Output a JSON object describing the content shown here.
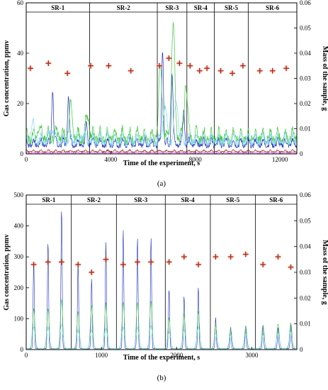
{
  "chart_data": [
    {
      "panel_label": "(a)",
      "type": "line",
      "xlabel": "Time of the experiment, s",
      "ylabel": "Gas concentration, ppmv",
      "y2label": "Mass of the sample, g",
      "xlim": [
        0,
        12800
      ],
      "ylim": [
        0,
        60
      ],
      "y2lim": [
        0,
        0.06
      ],
      "xticks": [
        0,
        4000,
        8000,
        12000
      ],
      "yticks": [
        0,
        20,
        40,
        60
      ],
      "y2ticks": [
        0,
        0.01,
        0.02,
        0.03,
        0.04,
        0.05,
        0.06
      ],
      "y2ticklabels": [
        "0",
        "0.01",
        "0.02",
        "0.03",
        "0.04",
        "0.05",
        "0.06"
      ],
      "segments": [
        {
          "label": "SR-1",
          "start": 0,
          "end": 3000
        },
        {
          "label": "SR-2",
          "start": 3000,
          "end": 6200
        },
        {
          "label": "SR-3",
          "start": 6200,
          "end": 7600
        },
        {
          "label": "SR-4",
          "start": 7600,
          "end": 8900
        },
        {
          "label": "SR-5",
          "start": 8900,
          "end": 10500
        },
        {
          "label": "SR-6",
          "start": 10500,
          "end": 12800
        }
      ],
      "mass_points": {
        "x": [
          200,
          1050,
          1950,
          3050,
          3900,
          4950,
          6300,
          6750,
          7250,
          7750,
          8200,
          8550,
          9200,
          9750,
          10250,
          11050,
          11650,
          12300
        ],
        "y": [
          0.034,
          0.036,
          0.032,
          0.035,
          0.035,
          0.033,
          0.035,
          0.038,
          0.036,
          0.035,
          0.033,
          0.034,
          0.033,
          0.032,
          0.035,
          0.033,
          0.033,
          0.034
        ]
      },
      "series": [
        {
          "color": "#1c2fc4",
          "baseline": 6,
          "peaks": [
            [
              1250,
              28
            ],
            [
              2000,
              25
            ],
            [
              2850,
              14
            ],
            [
              6450,
              44
            ],
            [
              6900,
              34
            ],
            [
              7450,
              20
            ]
          ],
          "width": 60
        },
        {
          "color": "#3ec93e",
          "baseline": 10,
          "peaks": [
            [
              600,
              14
            ],
            [
              1500,
              12
            ],
            [
              2100,
              21
            ],
            [
              2900,
              18
            ],
            [
              6350,
              37
            ],
            [
              6950,
              54
            ],
            [
              7550,
              32
            ]
          ],
          "width": 110
        },
        {
          "color": "#7fd6ee",
          "baseline": 8,
          "peaks": [
            [
              300,
              14
            ],
            [
              1200,
              13
            ],
            [
              2600,
              10
            ],
            [
              6550,
              22
            ],
            [
              7100,
              24
            ]
          ],
          "width": 120
        },
        {
          "color": "#8b1a1a",
          "baseline": 1.5,
          "peaks": [],
          "width": 60
        },
        {
          "color": "#e040e0",
          "baseline": 0.6,
          "peaks": [],
          "width": 60
        }
      ],
      "regular_peak_spacing": 350
    },
    {
      "panel_label": "(b)",
      "type": "line",
      "xlabel": "Time of the experiment, s",
      "ylabel": "Gas concentration, ppmv",
      "y2label": "Mass of the sample, g",
      "xlim": [
        0,
        3600
      ],
      "ylim": [
        0,
        500
      ],
      "y2lim": [
        0,
        0.06
      ],
      "xticks": [
        0,
        1000,
        2000,
        3000
      ],
      "yticks": [
        0,
        100,
        200,
        300,
        400,
        500
      ],
      "y2ticks": [
        0,
        0.01,
        0.02,
        0.03,
        0.04,
        0.05,
        0.06
      ],
      "y2ticklabels": [
        "0",
        "0.01",
        "0.02",
        "0.03",
        "0.04",
        "0.05",
        "0.06"
      ],
      "segments": [
        {
          "label": "SR-1",
          "start": 0,
          "end": 600
        },
        {
          "label": "SR-2",
          "start": 600,
          "end": 1200
        },
        {
          "label": "SR-3",
          "start": 1200,
          "end": 1850
        },
        {
          "label": "SR-4",
          "start": 1850,
          "end": 2450
        },
        {
          "label": "SR-5",
          "start": 2450,
          "end": 3050
        },
        {
          "label": "SR-6",
          "start": 3050,
          "end": 3600
        }
      ],
      "mass_points": {
        "x": [
          100,
          290,
          470,
          690,
          870,
          1060,
          1290,
          1480,
          1660,
          1900,
          2100,
          2290,
          2520,
          2720,
          2920,
          3150,
          3350,
          3520
        ],
        "y": [
          0.033,
          0.034,
          0.034,
          0.033,
          0.03,
          0.035,
          0.033,
          0.034,
          0.034,
          0.034,
          0.036,
          0.033,
          0.036,
          0.036,
          0.037,
          0.033,
          0.036,
          0.032
        ]
      },
      "peak_times": [
        100,
        290,
        470,
        690,
        870,
        1060,
        1290,
        1480,
        1660,
        1900,
        2100,
        2290,
        2520,
        2720,
        2920,
        3150,
        3350,
        3520
      ],
      "series": [
        {
          "color": "#1c2fc4",
          "heights": [
            285,
            350,
            458,
            280,
            228,
            345,
            385,
            360,
            360,
            195,
            172,
            200,
            100,
            70,
            75,
            80,
            70,
            85
          ],
          "width": 11
        },
        {
          "color": "#3ec93e",
          "heights": [
            130,
            130,
            160,
            120,
            140,
            150,
            150,
            150,
            155,
            100,
            110,
            120,
            75,
            65,
            70,
            75,
            80,
            80
          ],
          "width": 22
        },
        {
          "color": "#7fd6ee",
          "heights": [
            70,
            70,
            80,
            60,
            60,
            65,
            70,
            70,
            75,
            55,
            60,
            70,
            50,
            45,
            50,
            45,
            50,
            55
          ],
          "width": 28
        }
      ]
    }
  ]
}
